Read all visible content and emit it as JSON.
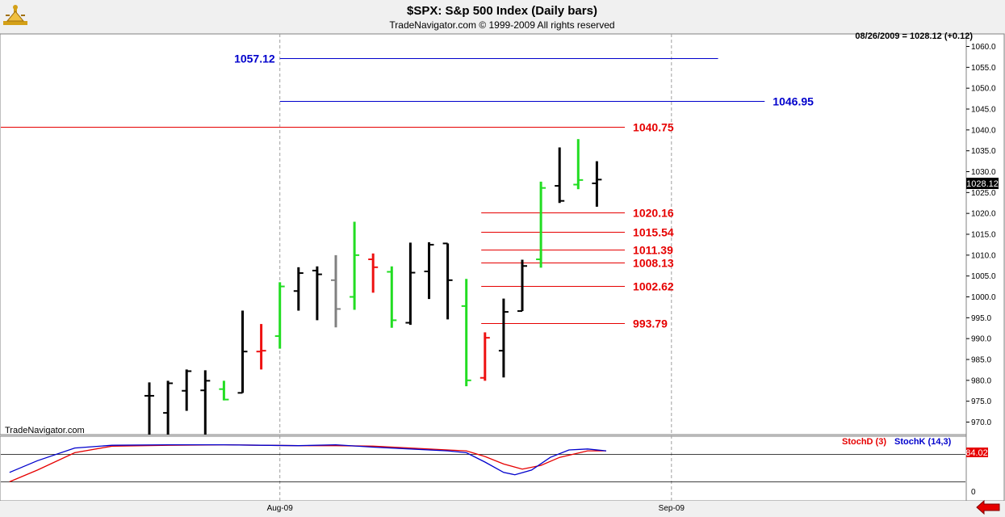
{
  "header": {
    "title": "$SPX:  S&p 500 Index  (Daily bars)",
    "copyright": "TradeNavigator.com © 1999-2009 All rights reserved",
    "status": "08/26/2009 = 1028.12 (+0.12)",
    "watermark": "TradeNavigator.com",
    "logo_icon": "trade-navigator-logo-icon",
    "nav_icon": "red-left-arrow-icon"
  },
  "chart_data": {
    "type": "ohlc",
    "ylim": [
      967,
      1063
    ],
    "yticks": [
      970,
      975,
      980,
      985,
      990,
      995,
      1000,
      1005,
      1010,
      1015,
      1020,
      1025,
      1030,
      1035,
      1040,
      1045,
      1050,
      1055,
      1060
    ],
    "last_price_label": "1028.12",
    "x_labels": [
      {
        "label": "Aug-09",
        "bar": 7
      },
      {
        "label": "Sep-09",
        "bar": 28
      }
    ],
    "bars": [
      {
        "o": 976.3,
        "h": 979.5,
        "l": 966,
        "c": 976.3,
        "color": "black"
      },
      {
        "o": 972.2,
        "h": 979.9,
        "l": 966,
        "c": 979.3,
        "color": "black"
      },
      {
        "o": 977.5,
        "h": 982.6,
        "l": 972.7,
        "c": 982.2,
        "color": "black"
      },
      {
        "o": 977.6,
        "h": 982.4,
        "l": 967,
        "c": 979.9,
        "color": "black"
      },
      {
        "o": 977.9,
        "h": 979.9,
        "l": 975.2,
        "c": 975.4,
        "color": "green"
      },
      {
        "o": 977.0,
        "h": 996.7,
        "l": 977.0,
        "c": 986.9,
        "color": "black"
      },
      {
        "o": 986.9,
        "h": 993.5,
        "l": 982.6,
        "c": 987.1,
        "color": "red"
      },
      {
        "o": 990.6,
        "h": 1003.5,
        "l": 987.6,
        "c": 1002.5,
        "color": "green"
      },
      {
        "o": 1001.4,
        "h": 1007.1,
        "l": 996.7,
        "c": 1005.7,
        "color": "black"
      },
      {
        "o": 1006.3,
        "h": 1007.3,
        "l": 994.4,
        "c": 1005.4,
        "color": "black"
      },
      {
        "o": 1004.0,
        "h": 1010.0,
        "l": 992.7,
        "c": 997.1,
        "color": "gray"
      },
      {
        "o": 1000.0,
        "h": 1018.0,
        "l": 996.9,
        "c": 1010.0,
        "color": "green"
      },
      {
        "o": 1009.0,
        "h": 1010.4,
        "l": 1001.0,
        "c": 1007.1,
        "color": "red"
      },
      {
        "o": 1006.0,
        "h": 1007.3,
        "l": 992.6,
        "c": 994.4,
        "color": "green"
      },
      {
        "o": 993.8,
        "h": 1013.0,
        "l": 993.3,
        "c": 1005.8,
        "color": "black"
      },
      {
        "o": 1006.1,
        "h": 1013.1,
        "l": 999.5,
        "c": 1012.5,
        "color": "black"
      },
      {
        "o": 1012.8,
        "h": 1012.8,
        "l": 994.6,
        "c": 1004.0,
        "color": "black"
      },
      {
        "o": 997.8,
        "h": 1004.3,
        "l": 978.6,
        "c": 980.0,
        "color": "green"
      },
      {
        "o": 980.6,
        "h": 991.5,
        "l": 979.9,
        "c": 990.2,
        "color": "red"
      },
      {
        "o": 987.1,
        "h": 999.6,
        "l": 980.7,
        "c": 996.4,
        "color": "black"
      },
      {
        "o": 996.6,
        "h": 1008.9,
        "l": 996.6,
        "c": 1007.4,
        "color": "black"
      },
      {
        "o": 1009.0,
        "h": 1027.6,
        "l": 1007.0,
        "c": 1026.1,
        "color": "green"
      },
      {
        "o": 1026.6,
        "h": 1035.8,
        "l": 1022.5,
        "c": 1023.0,
        "color": "black"
      },
      {
        "o": 1026.9,
        "h": 1037.8,
        "l": 1025.8,
        "c": 1028.0,
        "color": "green"
      },
      {
        "o": 1027.2,
        "h": 1032.5,
        "l": 1021.6,
        "c": 1028.1,
        "color": "black"
      }
    ],
    "levels": [
      {
        "value": 1057.12,
        "label": "1057.12",
        "color": "#0000cc",
        "from_bar": 7,
        "to_bar": 30.5,
        "label_side": "left"
      },
      {
        "value": 1046.95,
        "label": "1046.95",
        "color": "#0000cc",
        "from_bar": 7,
        "to_bar": 33,
        "label_side": "right"
      },
      {
        "value": 1040.75,
        "label": "1040.75",
        "color": "#e60000",
        "from_bar": -8,
        "to_bar": 25.5,
        "label_side": "right"
      },
      {
        "value": 1020.16,
        "label": "1020.16",
        "color": "#e60000",
        "from_bar": 17.8,
        "to_bar": 25.5,
        "label_side": "right"
      },
      {
        "value": 1015.54,
        "label": "1015.54",
        "color": "#e60000",
        "from_bar": 17.8,
        "to_bar": 25.5,
        "label_side": "right"
      },
      {
        "value": 1011.39,
        "label": "1011.39",
        "color": "#e60000",
        "from_bar": 17.8,
        "to_bar": 25.5,
        "label_side": "right"
      },
      {
        "value": 1008.13,
        "label": "1008.13",
        "color": "#e60000",
        "from_bar": 17.8,
        "to_bar": 25.5,
        "label_side": "right"
      },
      {
        "value": 1002.62,
        "label": "1002.62",
        "color": "#e60000",
        "from_bar": 17.8,
        "to_bar": 25.5,
        "label_side": "right"
      },
      {
        "value": 993.79,
        "label": "993.79",
        "color": "#e60000",
        "from_bar": 17.8,
        "to_bar": 25.5,
        "label_side": "right"
      }
    ],
    "stoch": {
      "ylim": [
        0,
        100
      ],
      "ref_lines": [
        80,
        20
      ],
      "yticks": [
        {
          "value": 0,
          "label": "0"
        },
        {
          "value": 80,
          "label": "80"
        }
      ],
      "last_value_label": "84.02",
      "stochD_name": "StochD (3)",
      "stochK_name": "StochK (14,3)",
      "stochD_color": "#e60000",
      "stochK_color": "#0000cc",
      "stochK": [
        [
          -7.5,
          40
        ],
        [
          -6,
          65
        ],
        [
          -4,
          92
        ],
        [
          -2,
          98
        ],
        [
          1,
          99
        ],
        [
          4,
          99
        ],
        [
          6,
          98
        ],
        [
          8,
          97
        ],
        [
          10,
          99
        ],
        [
          12,
          94
        ],
        [
          14,
          90
        ],
        [
          16,
          86
        ],
        [
          17,
          82
        ],
        [
          18,
          62
        ],
        [
          19,
          40
        ],
        [
          19.6,
          35
        ],
        [
          20.5,
          45
        ],
        [
          21.5,
          72
        ],
        [
          22.5,
          88
        ],
        [
          23.5,
          90
        ],
        [
          24.5,
          86
        ]
      ],
      "stochD": [
        [
          -7.5,
          20
        ],
        [
          -6,
          45
        ],
        [
          -4,
          82
        ],
        [
          -2,
          96
        ],
        [
          1,
          98
        ],
        [
          4,
          99
        ],
        [
          6,
          98
        ],
        [
          8,
          97
        ],
        [
          10,
          97
        ],
        [
          12,
          96
        ],
        [
          14,
          92
        ],
        [
          16,
          88
        ],
        [
          17,
          86
        ],
        [
          18,
          74
        ],
        [
          19,
          58
        ],
        [
          20,
          47
        ],
        [
          21,
          55
        ],
        [
          22,
          72
        ],
        [
          23.5,
          86
        ],
        [
          24.5,
          86
        ]
      ]
    }
  }
}
